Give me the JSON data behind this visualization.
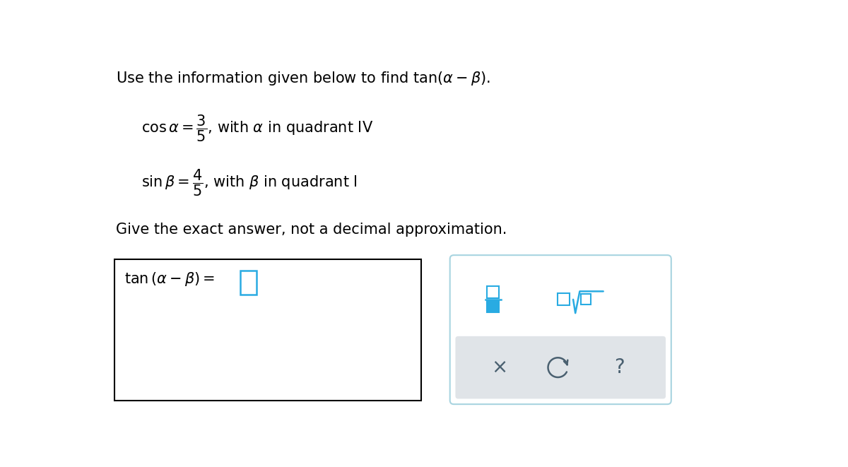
{
  "title_text": "Use the information given below to find $\\tan(\\alpha-\\beta)$.",
  "instruction": "Give the exact answer, not a decimal approximation.",
  "background_color": "#ffffff",
  "box_edge_color": "#000000",
  "answer_box_color": "#29abe2",
  "panel_edge_color": "#a8d4e0",
  "gray_bg": "#e0e4e8",
  "icon_color": "#29abe2",
  "btn_color": "#4a6070",
  "title_fontsize": 15,
  "body_fontsize": 15
}
